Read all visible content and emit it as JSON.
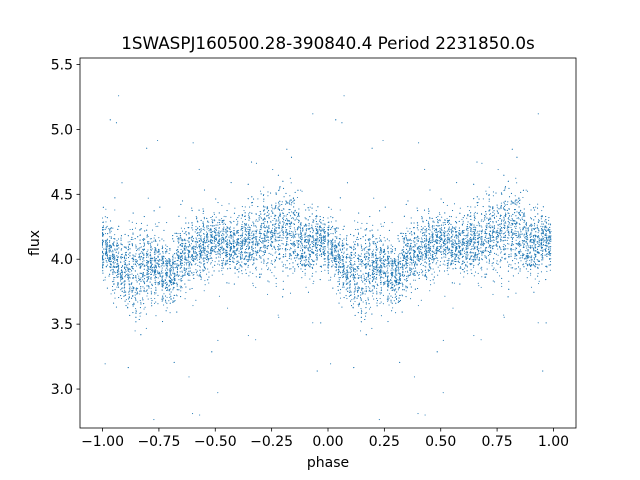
{
  "chart_data": {
    "type": "scatter",
    "title": "1SWASPJ160500.28-390840.4 Period 2231850.0s",
    "xlabel": "phase",
    "ylabel": "flux",
    "xlim": [
      -1.1,
      1.1
    ],
    "ylim": [
      2.7,
      5.55
    ],
    "xticks": [
      -1.0,
      -0.75,
      -0.5,
      -0.25,
      0.0,
      0.25,
      0.5,
      0.75,
      1.0
    ],
    "xtick_labels": [
      "−1.00",
      "−0.75",
      "−0.50",
      "−0.25",
      "0.00",
      "0.25",
      "0.50",
      "0.75",
      "1.00"
    ],
    "yticks": [
      3.0,
      3.5,
      4.0,
      4.5,
      5.0,
      5.5
    ],
    "ytick_labels": [
      "3.0",
      "3.5",
      "4.0",
      "4.5",
      "5.0",
      "5.5"
    ],
    "grid": false,
    "marker_color": "#1f77b4",
    "phase_range": [
      -1.0,
      1.0
    ],
    "period_repeat": 1.0,
    "profile": [
      {
        "phase": 0.0,
        "flux": 4.1,
        "spread": 0.2
      },
      {
        "phase": 0.05,
        "flux": 4.0,
        "spread": 0.2
      },
      {
        "phase": 0.1,
        "flux": 3.9,
        "spread": 0.25
      },
      {
        "phase": 0.15,
        "flux": 3.9,
        "spread": 0.35
      },
      {
        "phase": 0.2,
        "flux": 3.95,
        "spread": 0.25
      },
      {
        "phase": 0.25,
        "flux": 3.95,
        "spread": 0.22
      },
      {
        "phase": 0.3,
        "flux": 3.85,
        "spread": 0.2
      },
      {
        "phase": 0.35,
        "flux": 4.0,
        "spread": 0.2
      },
      {
        "phase": 0.4,
        "flux": 4.05,
        "spread": 0.22
      },
      {
        "phase": 0.45,
        "flux": 4.1,
        "spread": 0.22
      },
      {
        "phase": 0.5,
        "flux": 4.15,
        "spread": 0.2
      },
      {
        "phase": 0.55,
        "flux": 4.1,
        "spread": 0.2
      },
      {
        "phase": 0.6,
        "flux": 4.1,
        "spread": 0.2
      },
      {
        "phase": 0.65,
        "flux": 4.15,
        "spread": 0.22
      },
      {
        "phase": 0.7,
        "flux": 4.15,
        "spread": 0.28
      },
      {
        "phase": 0.75,
        "flux": 4.2,
        "spread": 0.3
      },
      {
        "phase": 0.8,
        "flux": 4.2,
        "spread": 0.28
      },
      {
        "phase": 0.85,
        "flux": 4.2,
        "spread": 0.28
      },
      {
        "phase": 0.9,
        "flux": 4.1,
        "spread": 0.22
      },
      {
        "phase": 0.95,
        "flux": 4.15,
        "spread": 0.2
      },
      {
        "phase": 1.0,
        "flux": 4.1,
        "spread": 0.2
      }
    ],
    "points_per_cycle": 5200
  }
}
